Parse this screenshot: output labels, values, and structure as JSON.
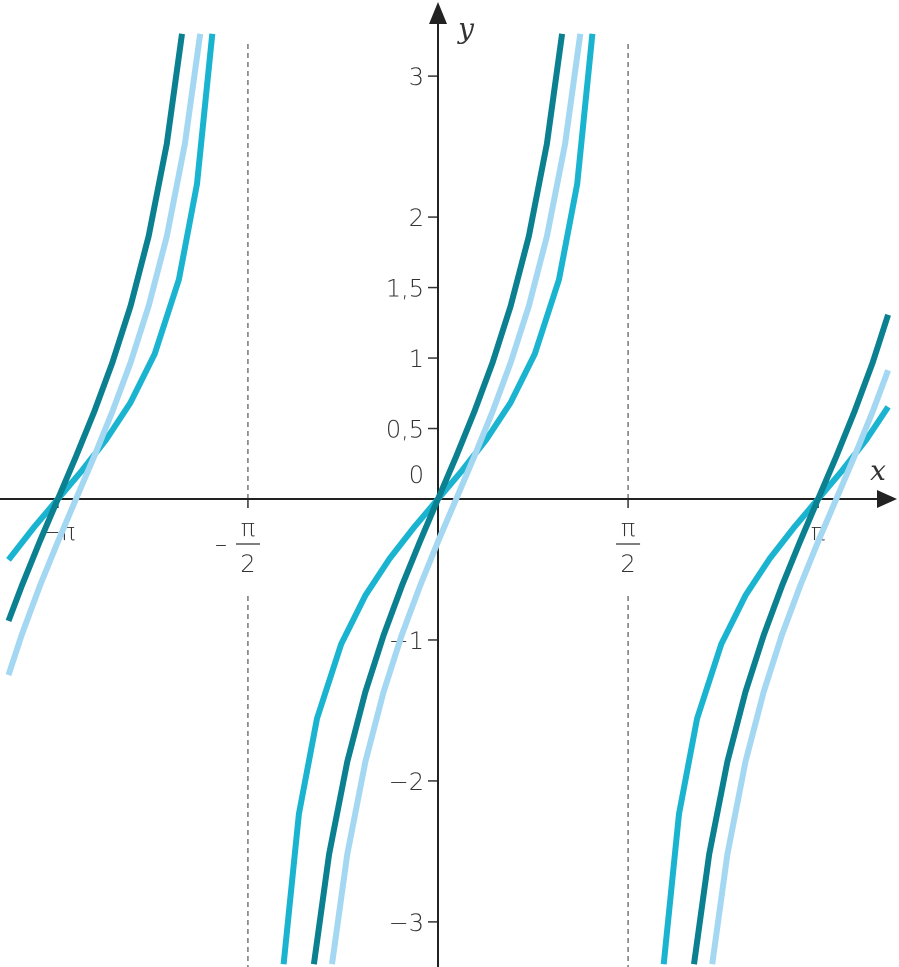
{
  "chart_data": {
    "type": "line",
    "x_label": "x",
    "y_label": "y",
    "xlim": [
      -3.62,
      3.81
    ],
    "ylim": [
      -3.32,
      3.54
    ],
    "xticks": [
      {
        "value": -3.1416,
        "label": "−π"
      },
      {
        "value": -1.5708,
        "sign": "–",
        "numerator": "π",
        "denominator": "2"
      },
      {
        "value": 1.5708,
        "numerator": "π",
        "denominator": "2"
      },
      {
        "value": 3.1416,
        "label": "π"
      }
    ],
    "yticks": [
      {
        "value": -3,
        "label": "−3"
      },
      {
        "value": -2,
        "label": "−2"
      },
      {
        "value": -1,
        "label": "−1"
      },
      0,
      {
        "value": 0.5,
        "label": "0,5"
      },
      1,
      {
        "value": 1.5,
        "label": "1,5"
      },
      2,
      3
    ],
    "dashed_asymptotes": true,
    "series": [
      {
        "color": "#1ab4d0",
        "x": [
          -3.55,
          -3.3416,
          -3.1416,
          -2.9416,
          -2.7416,
          -2.5416,
          -2.3416,
          -2.1416,
          -1.9916,
          -1.8656,
          null,
          -1.276,
          -1.15,
          -1.0,
          -0.8,
          -0.6,
          -0.4,
          -0.2,
          0,
          0.2,
          0.4,
          0.6,
          0.8,
          1.0,
          1.15,
          1.276,
          null,
          1.8656,
          1.9916,
          2.1416,
          2.3416,
          2.5416,
          2.7416,
          2.9416,
          3.1416,
          3.3416,
          3.5416,
          3.72
        ],
        "values": [
          -0.432,
          -0.2027,
          0,
          0.2027,
          0.4228,
          0.6841,
          1.0296,
          1.5574,
          2.2345,
          3.3,
          null,
          -3.3,
          -2.2345,
          -1.5574,
          -1.0296,
          -0.6841,
          -0.4228,
          -0.2027,
          0,
          0.2027,
          0.4228,
          0.6841,
          1.0296,
          1.5574,
          2.2345,
          3.3,
          null,
          -3.3,
          -2.2345,
          -1.5574,
          -1.0296,
          -0.6841,
          -0.4228,
          -0.2027,
          0,
          0.2027,
          0.4228,
          0.6533
        ]
      },
      {
        "color": "#0a8090",
        "x": [
          -3.55,
          -3.4416,
          -3.2916,
          -3.1416,
          -2.9916,
          -2.8416,
          -2.6916,
          -2.5416,
          -2.3916,
          -2.2416,
          -2.116,
          null,
          -1.026,
          -0.9,
          -0.75,
          -0.6,
          -0.45,
          -0.3,
          -0.15,
          0,
          0.15,
          0.3,
          0.45,
          0.6,
          0.75,
          0.9,
          1.026,
          null,
          2.116,
          2.2416,
          2.3916,
          2.5416,
          2.6916,
          2.8416,
          2.9916,
          3.1416,
          3.2916,
          3.4416,
          3.5916,
          3.72
        ],
        "values": [
          -0.865,
          -0.619,
          -0.302,
          0,
          0.302,
          0.619,
          0.966,
          1.368,
          1.863,
          2.52,
          3.3,
          null,
          -3.3,
          -2.52,
          -1.863,
          -1.368,
          -0.966,
          -0.619,
          -0.302,
          0,
          0.302,
          0.619,
          0.966,
          1.368,
          1.863,
          2.52,
          3.3,
          null,
          -3.3,
          -2.52,
          -1.863,
          -1.368,
          -0.966,
          -0.619,
          -0.302,
          0,
          0.302,
          0.619,
          0.966,
          1.307
        ]
      },
      {
        "color": "#a4d8f2",
        "x": [
          -3.55,
          -3.4416,
          -3.2916,
          -3.1416,
          -2.9916,
          -2.8416,
          -2.6916,
          -2.5416,
          -2.3916,
          -2.2416,
          -2.0916,
          -1.9656,
          null,
          -0.876,
          -0.75,
          -0.6,
          -0.45,
          -0.3,
          -0.15,
          0,
          0.15,
          0.3,
          0.45,
          0.6,
          0.75,
          0.9,
          1.05,
          1.176,
          null,
          2.266,
          2.3916,
          2.5416,
          2.6916,
          2.8416,
          2.9916,
          3.1416,
          3.2916,
          3.4416,
          3.5916,
          3.72
        ],
        "values": [
          -1.249,
          -0.966,
          -0.619,
          -0.302,
          0,
          0.302,
          0.619,
          0.966,
          1.368,
          1.863,
          2.52,
          3.3,
          null,
          -3.3,
          -2.52,
          -1.863,
          -1.368,
          -0.966,
          -0.619,
          -0.302,
          0,
          0.302,
          0.619,
          0.966,
          1.368,
          1.863,
          2.52,
          3.3,
          null,
          -3.3,
          -2.52,
          -1.863,
          -1.368,
          -0.966,
          -0.619,
          -0.302,
          0,
          0.302,
          0.619,
          0.913
        ]
      }
    ]
  }
}
